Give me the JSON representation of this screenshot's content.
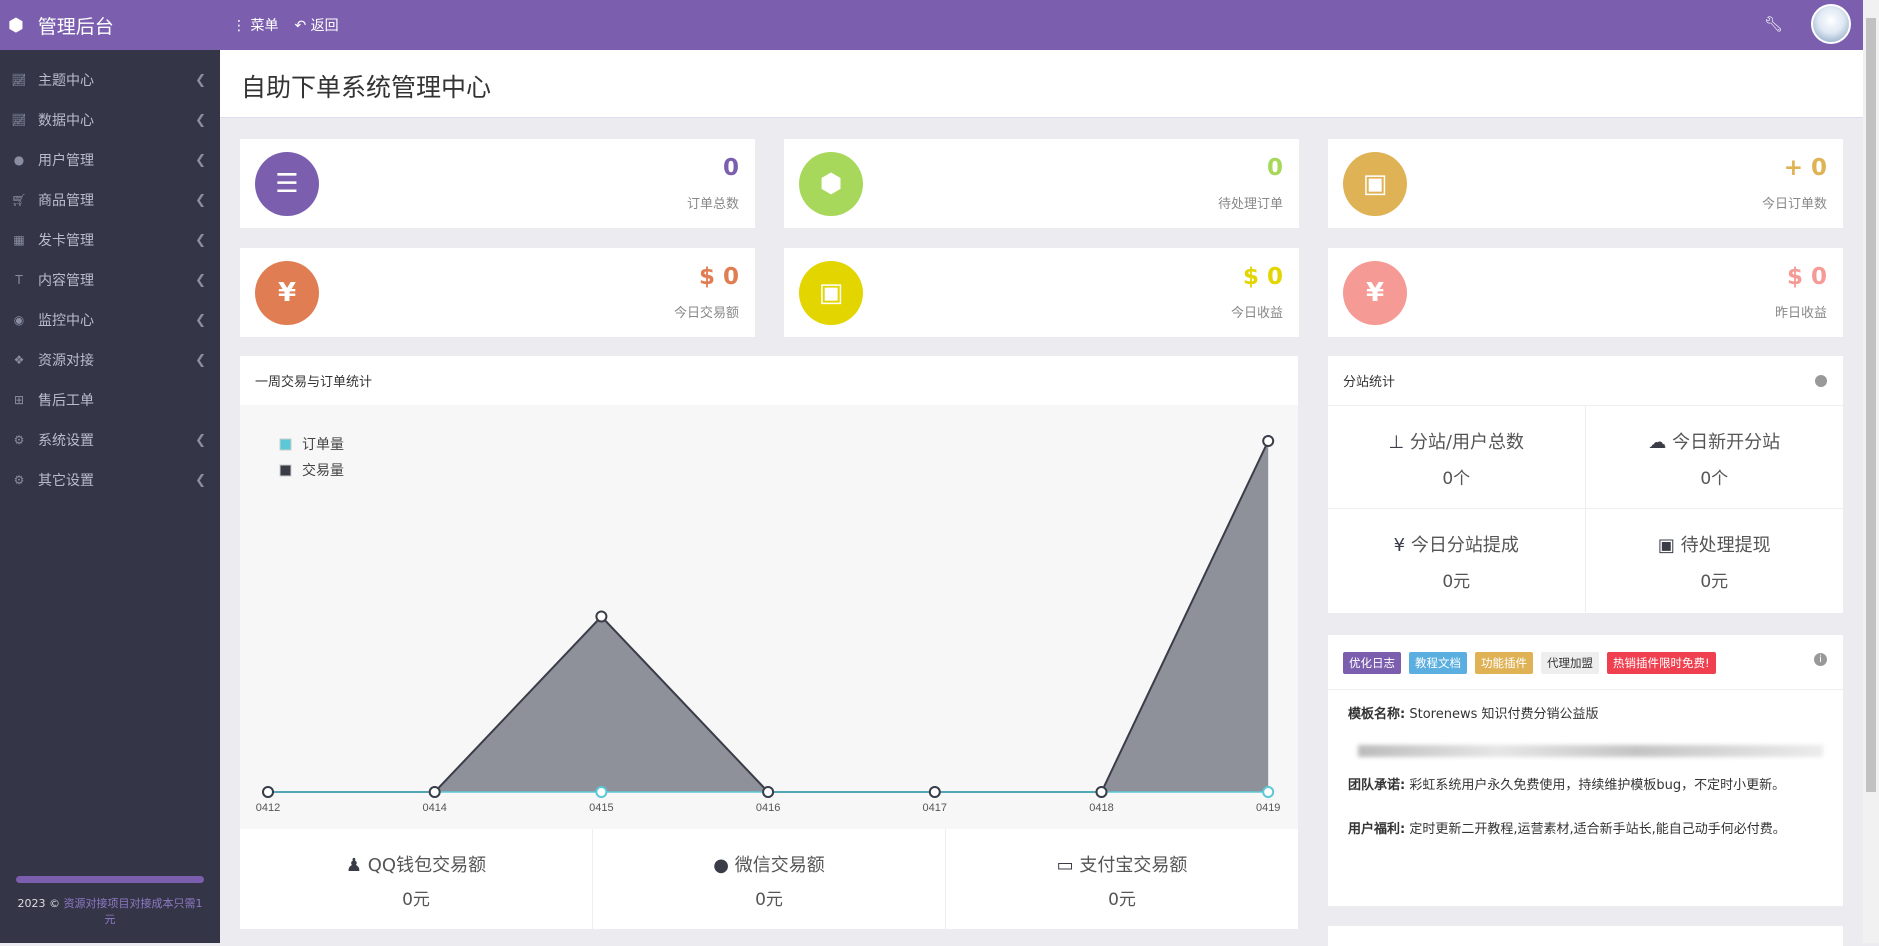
{
  "header": {
    "brand": "管理后台",
    "menu_label": "菜单",
    "back_label": "返回",
    "icons": {
      "brand": "cube-icon",
      "menu": "ellipsis-vertical-icon",
      "back": "reply-icon",
      "settings": "wrench-icon"
    }
  },
  "sidebar": {
    "items": [
      {
        "label": "主题中心",
        "icon": "line-chart-icon",
        "has_children": true
      },
      {
        "label": "数据中心",
        "icon": "line-chart-icon",
        "has_children": true
      },
      {
        "label": "用户管理",
        "icon": "user-icon",
        "has_children": true
      },
      {
        "label": "商品管理",
        "icon": "cart-icon",
        "has_children": true
      },
      {
        "label": "发卡管理",
        "icon": "grid-icon",
        "has_children": true
      },
      {
        "label": "内容管理",
        "icon": "text-icon",
        "has_children": true
      },
      {
        "label": "监控中心",
        "icon": "dot-circle-icon",
        "has_children": true
      },
      {
        "label": "资源对接",
        "icon": "cubes-icon",
        "has_children": true
      },
      {
        "label": "售后工单",
        "icon": "plus-square-icon",
        "has_children": false
      },
      {
        "label": "系统设置",
        "icon": "gear-icon",
        "has_children": true
      },
      {
        "label": "其它设置",
        "icon": "gears-icon",
        "has_children": true
      }
    ],
    "footer": {
      "year": "2023 ©",
      "link": "资源对接项目对接成本只需1元"
    }
  },
  "page_title": "自助下单系统管理中心",
  "stats": [
    {
      "value": "0",
      "label": "订单总数",
      "color": "#7b5fae",
      "icon": "ordered-list-icon"
    },
    {
      "value": "0",
      "label": "待处理订单",
      "color": "#a8d85b",
      "icon": "cube-icon"
    },
    {
      "value": "+ 0",
      "label": "今日订单数",
      "color": "#dfb256",
      "icon": "briefcase-icon"
    },
    {
      "value": "$ 0",
      "label": "今日交易额",
      "color": "#e07d52",
      "icon": "yen-icon"
    },
    {
      "value": "$ 0",
      "label": "今日收益",
      "color": "#e3d500",
      "icon": "briefcase-icon"
    },
    {
      "value": "$ 0",
      "label": "昨日收益",
      "color": "#f59a95",
      "icon": "yen-icon"
    }
  ],
  "weekly": {
    "title": "一周交易与订单统计",
    "payments": [
      {
        "label": "QQ钱包交易额",
        "value": "0元",
        "icon": "qq-icon"
      },
      {
        "label": "微信交易额",
        "value": "0元",
        "icon": "wechat-icon"
      },
      {
        "label": "支付宝交易额",
        "value": "0元",
        "icon": "credit-card-icon"
      }
    ]
  },
  "chart_data": {
    "type": "area",
    "categories": [
      "0412",
      "0414",
      "0415",
      "0416",
      "0417",
      "0418",
      "0419"
    ],
    "series": [
      {
        "name": "订单量",
        "values": [
          0,
          0,
          0,
          0,
          0,
          0,
          0
        ],
        "color": "#5bc8d8"
      },
      {
        "name": "交易量",
        "values": [
          0,
          0,
          1,
          0,
          0,
          0,
          2
        ],
        "color": "#3a3d48"
      }
    ],
    "ylim": [
      0,
      2
    ],
    "grid": false,
    "legend": "top-left"
  },
  "substation": {
    "title": "分站统计",
    "cells": [
      {
        "label": "分站/用户总数",
        "value": "0个",
        "icon": "sitemap-icon"
      },
      {
        "label": "今日新开分站",
        "value": "0个",
        "icon": "cloud-icon"
      },
      {
        "label": "今日分站提成",
        "value": "0元",
        "icon": "yen-icon"
      },
      {
        "label": "待处理提现",
        "value": "0元",
        "icon": "money-icon"
      }
    ]
  },
  "info": {
    "tags": [
      {
        "label": "优化日志",
        "color": "#7b5fae",
        "text": "#fff"
      },
      {
        "label": "教程文档",
        "color": "#5aaee0",
        "text": "#fff"
      },
      {
        "label": "功能插件",
        "color": "#dfb256",
        "text": "#fff"
      },
      {
        "label": "代理加盟",
        "color": "#eeeeee",
        "text": "#333"
      },
      {
        "label": "热销插件限时免费!",
        "color": "#f0404f",
        "text": "#fff"
      }
    ],
    "template_label": "模板名称:",
    "template_value": "Storenews 知识付费分销公益版",
    "promise_label": "团队承诺:",
    "promise_value": "彩虹系统用户永久免费使用，持续维护模板bug，不定时小更新。",
    "welfare_label": "用户福利:",
    "welfare_value": "定时更新二开教程,运营素材,适合新手站长,能自己动手何必付费。"
  }
}
